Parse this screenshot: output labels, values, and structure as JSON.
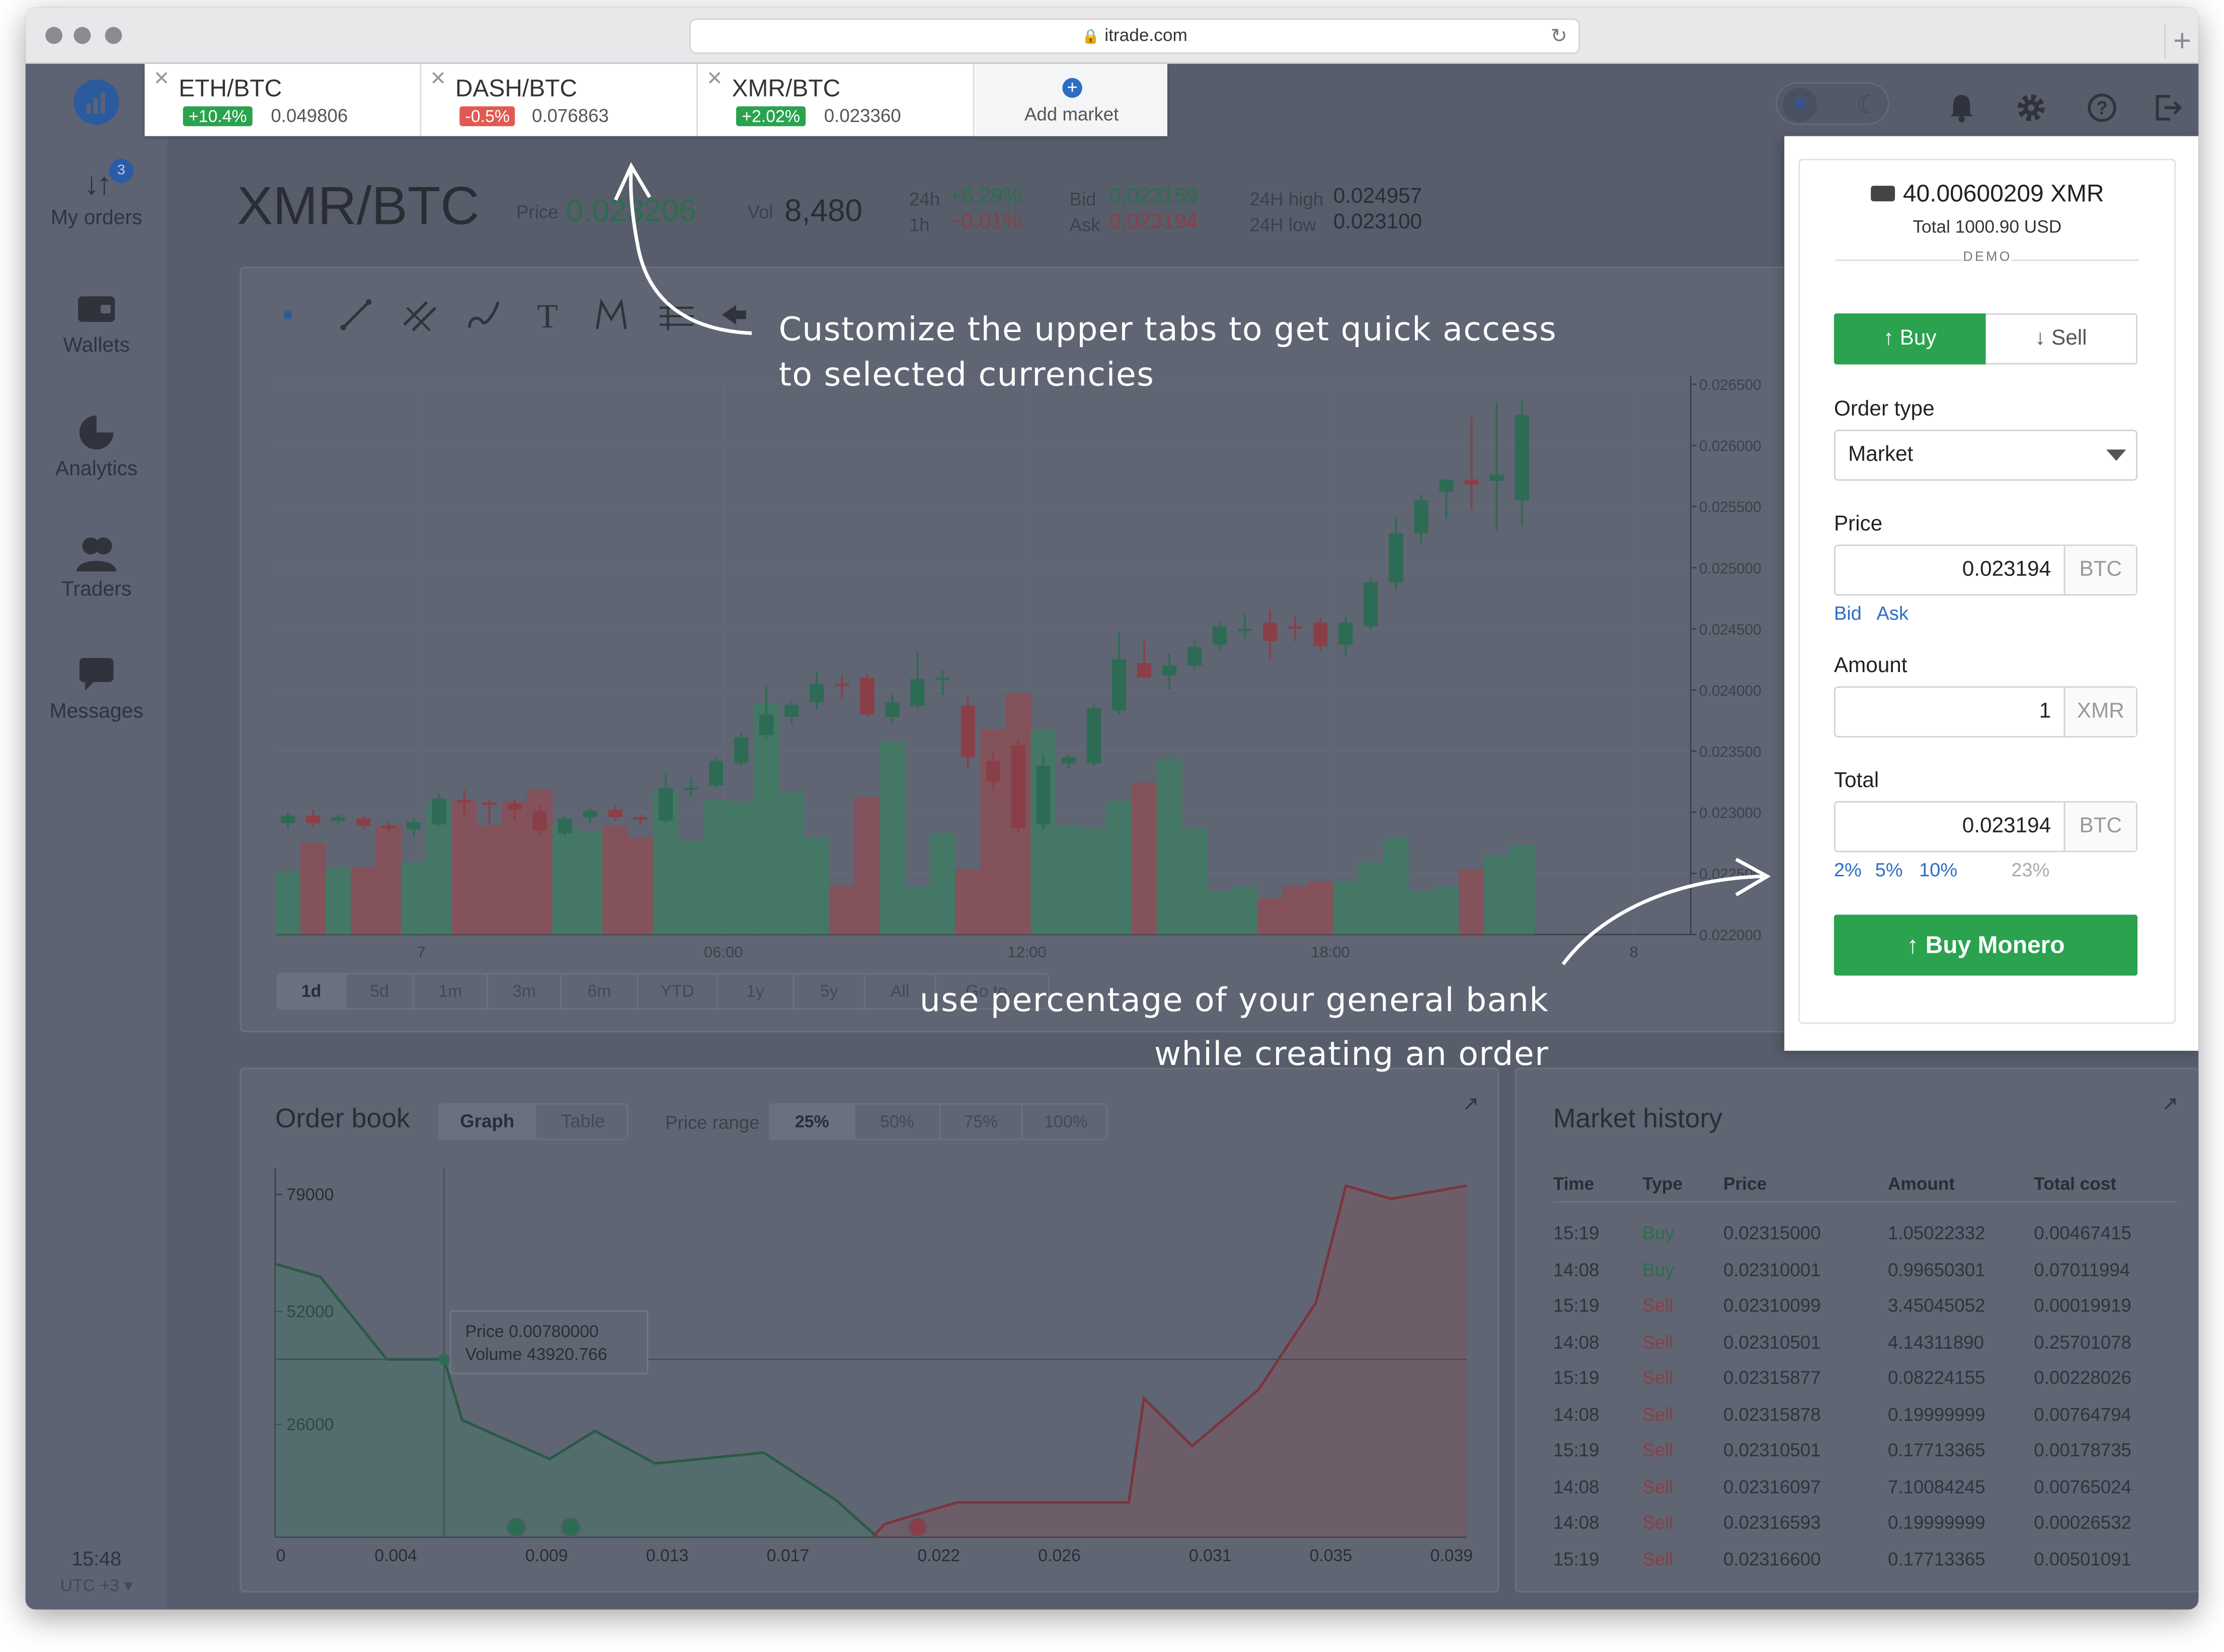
{
  "browser": {
    "url": "itrade.com"
  },
  "sidebar": {
    "items": [
      {
        "label": "My orders",
        "badge": "3"
      },
      {
        "label": "Wallets"
      },
      {
        "label": "Analytics"
      },
      {
        "label": "Traders"
      },
      {
        "label": "Messages"
      }
    ],
    "clock": "15:48",
    "timezone": "UTC +3 ▾"
  },
  "tabs": [
    {
      "pair": "ETH/BTC",
      "change": "+10.4%",
      "price": "0.049806",
      "direction": "up"
    },
    {
      "pair": "DASH/BTC",
      "change": "-0.5%",
      "price": "0.076863",
      "direction": "down"
    },
    {
      "pair": "XMR/BTC",
      "change": "+2.02%",
      "price": "0.023360",
      "direction": "up"
    }
  ],
  "add_market": "Add market",
  "ticker": {
    "pair": "XMR/BTC",
    "price_label": "Price",
    "price": "0.023206",
    "vol_label": "Vol",
    "vol": "8,480",
    "h24_label": "24h",
    "h24": "+6.29%",
    "h1_label": "1h",
    "h1": "−0.01%",
    "bid_label": "Bid",
    "bid": "0.023159",
    "ask_label": "Ask",
    "ask": "0.023194",
    "high_label": "24H high",
    "high": "0.024957",
    "low_label": "24H low",
    "low": "0.023100"
  },
  "chart_tools": [
    "dot-tool",
    "line-tool",
    "multi-line-tool",
    "brush-tool",
    "text-tool",
    "pattern-tool",
    "measure-tool",
    "back-tool"
  ],
  "timeframes": [
    "1d",
    "5d",
    "1m",
    "3m",
    "6m",
    "YTD",
    "1y",
    "5y",
    "All",
    "Go to..."
  ],
  "chart_data": [
    {
      "type": "candlestick",
      "title": "",
      "x_ticks": [
        "7",
        "06:00",
        "12:00",
        "18:00",
        "8"
      ],
      "y_ticks": [
        "0.022000",
        "0.022500",
        "0.023000",
        "0.023500",
        "0.024000",
        "0.024500",
        "0.025000",
        "0.025500",
        "0.026000",
        "0.026500"
      ],
      "ylim": [
        0.022,
        0.0265
      ],
      "up_color": "#3f7a64",
      "down_color": "#8a4f57",
      "candles": [
        {
          "o": 0.02291,
          "c": 0.02297,
          "h": 0.023,
          "l": 0.02286
        },
        {
          "o": 0.02297,
          "c": 0.02291,
          "h": 0.02302,
          "l": 0.02288
        },
        {
          "o": 0.02293,
          "c": 0.02296,
          "h": 0.02298,
          "l": 0.0229
        },
        {
          "o": 0.02295,
          "c": 0.02289,
          "h": 0.02297,
          "l": 0.02286
        },
        {
          "o": 0.02289,
          "c": 0.02287,
          "h": 0.02292,
          "l": 0.02284
        },
        {
          "o": 0.02286,
          "c": 0.02292,
          "h": 0.02295,
          "l": 0.0228
        },
        {
          "o": 0.0229,
          "c": 0.02311,
          "h": 0.02315,
          "l": 0.02289
        },
        {
          "o": 0.0231,
          "c": 0.02308,
          "h": 0.02318,
          "l": 0.02298
        },
        {
          "o": 0.02308,
          "c": 0.02306,
          "h": 0.0231,
          "l": 0.0229
        },
        {
          "o": 0.02307,
          "c": 0.02302,
          "h": 0.02311,
          "l": 0.02293
        },
        {
          "o": 0.02301,
          "c": 0.02285,
          "h": 0.02305,
          "l": 0.02281
        },
        {
          "o": 0.02283,
          "c": 0.02295,
          "h": 0.02297,
          "l": 0.02281
        },
        {
          "o": 0.02296,
          "c": 0.02301,
          "h": 0.02303,
          "l": 0.02292
        },
        {
          "o": 0.02302,
          "c": 0.02296,
          "h": 0.02306,
          "l": 0.02293
        },
        {
          "o": 0.02296,
          "c": 0.02294,
          "h": 0.02298,
          "l": 0.0229
        },
        {
          "o": 0.02293,
          "c": 0.0232,
          "h": 0.02333,
          "l": 0.02291
        },
        {
          "o": 0.0232,
          "c": 0.0232,
          "h": 0.02328,
          "l": 0.02312
        },
        {
          "o": 0.02322,
          "c": 0.02342,
          "h": 0.02345,
          "l": 0.0232
        },
        {
          "o": 0.0234,
          "c": 0.02361,
          "h": 0.02365,
          "l": 0.02338
        },
        {
          "o": 0.02363,
          "c": 0.0238,
          "h": 0.02404,
          "l": 0.0236
        },
        {
          "o": 0.02378,
          "c": 0.02388,
          "h": 0.0239,
          "l": 0.02372
        },
        {
          "o": 0.0239,
          "c": 0.02405,
          "h": 0.02415,
          "l": 0.02384
        },
        {
          "o": 0.02405,
          "c": 0.02404,
          "h": 0.02412,
          "l": 0.02393
        },
        {
          "o": 0.0241,
          "c": 0.0238,
          "h": 0.02413,
          "l": 0.02378
        },
        {
          "o": 0.02378,
          "c": 0.0239,
          "h": 0.02396,
          "l": 0.02372
        },
        {
          "o": 0.02387,
          "c": 0.02409,
          "h": 0.02432,
          "l": 0.02385
        },
        {
          "o": 0.0241,
          "c": 0.0241,
          "h": 0.02416,
          "l": 0.02396
        },
        {
          "o": 0.02387,
          "c": 0.02345,
          "h": 0.02394,
          "l": 0.02336
        },
        {
          "o": 0.02342,
          "c": 0.02325,
          "h": 0.0235,
          "l": 0.02318
        },
        {
          "o": 0.02355,
          "c": 0.02287,
          "h": 0.0236,
          "l": 0.02283
        },
        {
          "o": 0.0229,
          "c": 0.02338,
          "h": 0.02347,
          "l": 0.02286
        },
        {
          "o": 0.0234,
          "c": 0.02345,
          "h": 0.02347,
          "l": 0.02336
        },
        {
          "o": 0.0234,
          "c": 0.02385,
          "h": 0.02388,
          "l": 0.02338
        },
        {
          "o": 0.02383,
          "c": 0.02425,
          "h": 0.02447,
          "l": 0.0238
        },
        {
          "o": 0.02422,
          "c": 0.0241,
          "h": 0.0244,
          "l": 0.0241
        },
        {
          "o": 0.02412,
          "c": 0.0242,
          "h": 0.0243,
          "l": 0.024
        },
        {
          "o": 0.0242,
          "c": 0.02435,
          "h": 0.0244,
          "l": 0.02418
        },
        {
          "o": 0.02437,
          "c": 0.02452,
          "h": 0.02455,
          "l": 0.02432
        },
        {
          "o": 0.0245,
          "c": 0.0245,
          "h": 0.02462,
          "l": 0.02442
        },
        {
          "o": 0.02455,
          "c": 0.0244,
          "h": 0.02466,
          "l": 0.02425
        },
        {
          "o": 0.02452,
          "c": 0.0245,
          "h": 0.0246,
          "l": 0.0244
        },
        {
          "o": 0.02455,
          "c": 0.02436,
          "h": 0.02459,
          "l": 0.02432
        },
        {
          "o": 0.02437,
          "c": 0.02455,
          "h": 0.0246,
          "l": 0.02428
        },
        {
          "o": 0.02452,
          "c": 0.02488,
          "h": 0.0249,
          "l": 0.0245
        },
        {
          "o": 0.02488,
          "c": 0.02528,
          "h": 0.0254,
          "l": 0.02482
        },
        {
          "o": 0.02528,
          "c": 0.02555,
          "h": 0.0256,
          "l": 0.0252
        },
        {
          "o": 0.02562,
          "c": 0.02572,
          "h": 0.02573,
          "l": 0.0254
        },
        {
          "o": 0.02572,
          "c": 0.02568,
          "h": 0.02623,
          "l": 0.02548
        },
        {
          "o": 0.02571,
          "c": 0.02576,
          "h": 0.02635,
          "l": 0.0253
        },
        {
          "o": 0.02555,
          "c": 0.02625,
          "h": 0.02637,
          "l": 0.02535
        }
      ],
      "volumes": [
        0.26,
        0.38,
        0.28,
        0.28,
        0.45,
        0.3,
        0.55,
        0.55,
        0.45,
        0.55,
        0.6,
        0.45,
        0.43,
        0.45,
        0.4,
        0.59,
        0.39,
        0.56,
        0.55,
        0.96,
        0.59,
        0.4,
        0.2,
        0.57,
        0.8,
        0.2,
        0.42,
        0.27,
        0.85,
        1.0,
        0.85,
        0.45,
        0.44,
        0.55,
        0.63,
        0.73,
        0.44,
        0.18,
        0.2,
        0.15,
        0.2,
        0.22,
        0.22,
        0.3,
        0.4,
        0.18,
        0.2,
        0.27,
        0.33,
        0.37
      ]
    },
    {
      "type": "area",
      "title": "Order book",
      "x_ticks": [
        "0",
        "0.004",
        "0.009",
        "0.013",
        "0.017",
        "0.022",
        "0.026",
        "0.031",
        "0.035",
        "0.039"
      ],
      "y_ticks": [
        "79000",
        "52000",
        "26000"
      ],
      "xlim": [
        0,
        0.0395
      ],
      "ylim": [
        0,
        85000
      ],
      "series": [
        {
          "name": "bids",
          "color": "#3f7a64",
          "x": [
            0,
            0.0015,
            0.0037,
            0.0056,
            0.0062,
            0.0091,
            0.0106,
            0.0126,
            0.0162,
            0.0186,
            0.0194,
            0.0198,
            0.02
          ],
          "y": [
            63000,
            60000,
            41000,
            41000,
            27000,
            18000,
            24500,
            17000,
            19500,
            8500,
            3500,
            1000,
            0
          ]
        },
        {
          "name": "asks",
          "color": "#8a4f57",
          "x": [
            0.0198,
            0.0202,
            0.0226,
            0.0283,
            0.0288,
            0.0304,
            0.0326,
            0.0345,
            0.0355,
            0.037,
            0.0395
          ],
          "y": [
            0,
            3000,
            8000,
            8000,
            32000,
            21000,
            34000,
            54000,
            81000,
            78000,
            81000
          ]
        }
      ],
      "tooltip": {
        "price_label": "Price",
        "price": "0.00780000",
        "volume_label": "Volume",
        "volume": "43920.766"
      }
    }
  ],
  "order_book": {
    "title": "Order book",
    "view_graph": "Graph",
    "view_table": "Table",
    "range_label": "Price range",
    "ranges": [
      "25%",
      "50%",
      "75%",
      "100%"
    ]
  },
  "market_history": {
    "title": "Market history",
    "columns": [
      "Time",
      "Type",
      "Price",
      "Amount",
      "Total cost"
    ],
    "rows": [
      {
        "time": "15:19",
        "type": "Buy",
        "price": "0.02315000",
        "amount": "1.05022332",
        "total": "0.00467415"
      },
      {
        "time": "14:08",
        "type": "Buy",
        "price": "0.02310001",
        "amount": "0.99650301",
        "total": "0.07011994"
      },
      {
        "time": "15:19",
        "type": "Sell",
        "price": "0.02310099",
        "amount": "3.45045052",
        "total": "0.00019919"
      },
      {
        "time": "14:08",
        "type": "Sell",
        "price": "0.02310501",
        "amount": "4.14311890",
        "total": "0.25701078"
      },
      {
        "time": "15:19",
        "type": "Sell",
        "price": "0.02315877",
        "amount": "0.08224155",
        "total": "0.00228026"
      },
      {
        "time": "14:08",
        "type": "Sell",
        "price": "0.02315878",
        "amount": "0.19999999",
        "total": "0.00764794"
      },
      {
        "time": "15:19",
        "type": "Sell",
        "price": "0.02310501",
        "amount": "0.17713365",
        "total": "0.00178735"
      },
      {
        "time": "14:08",
        "type": "Sell",
        "price": "0.02316097",
        "amount": "7.10084245",
        "total": "0.00765024"
      },
      {
        "time": "14:08",
        "type": "Sell",
        "price": "0.02316593",
        "amount": "0.19999999",
        "total": "0.00026532"
      },
      {
        "time": "15:19",
        "type": "Sell",
        "price": "0.02316600",
        "amount": "0.17713365",
        "total": "0.00501091"
      }
    ]
  },
  "order_form": {
    "balance": "40.00600209 XMR",
    "total_usd": "Total 1000.90 USD",
    "mode": "DEMO",
    "buy_tab": "Buy",
    "sell_tab": "Sell",
    "order_type_label": "Order type",
    "order_type": "Market",
    "price_label": "Price",
    "price": "0.023194",
    "price_unit": "BTC",
    "bid_link": "Bid",
    "ask_link": "Ask",
    "amount_label": "Amount",
    "amount": "1",
    "amount_unit": "XMR",
    "total_label": "Total",
    "total": "0.023194",
    "total_unit": "BTC",
    "percents": [
      "2%",
      "5%",
      "10%"
    ],
    "percent_current": "23%",
    "submit": "Buy Monero"
  },
  "annotations": {
    "tabs_note_1": "Customize the upper tabs to get quick access",
    "tabs_note_2": "to selected currencies",
    "percent_note_1": "use percentage of your general bank",
    "percent_note_2": "while creating an order"
  },
  "colors": {
    "accent": "#2b9d49",
    "link": "#2d6ec4",
    "up": "#1c9a4a",
    "down": "#c33a3a"
  }
}
